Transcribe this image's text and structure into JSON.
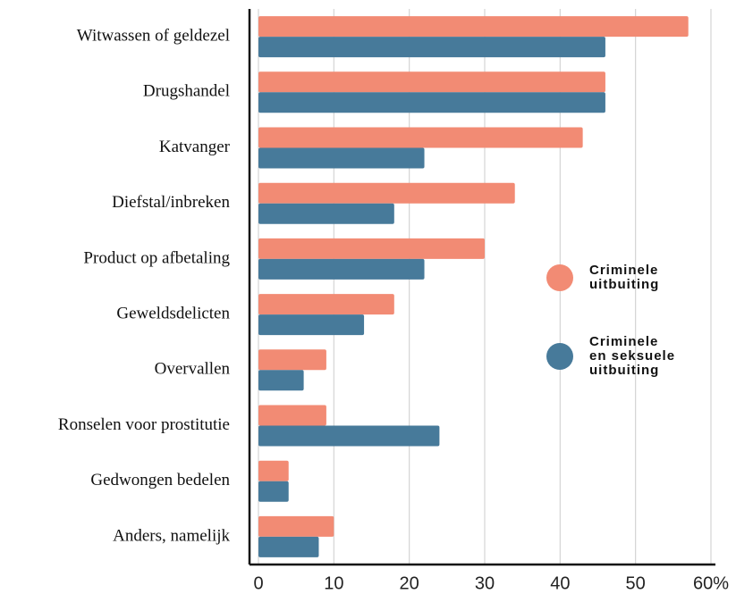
{
  "chart_data": {
    "type": "bar",
    "orientation": "horizontal",
    "categories": [
      "Witwassen of geldezel",
      "Drugshandel",
      "Katvanger",
      "Diefstal/inbreken",
      "Product op afbetaling",
      "Geweldsdelicten",
      "Overvallen",
      "Ronselen voor prostitutie",
      "Gedwongen bedelen",
      "Anders, namelijk"
    ],
    "series": [
      {
        "name": "Criminele uitbuiting",
        "color": "#f28b74",
        "values": [
          57,
          46,
          43,
          34,
          30,
          18,
          9,
          9,
          4,
          10
        ]
      },
      {
        "name": "Criminele en seksuele uitbuiting",
        "color": "#477a9a",
        "values": [
          46,
          46,
          22,
          18,
          22,
          14,
          6,
          24,
          4,
          8
        ]
      }
    ],
    "xlim": [
      0,
      60
    ],
    "xticks": [
      0,
      10,
      20,
      30,
      40,
      50,
      {
        "value": 60,
        "label": "60%"
      }
    ],
    "grid": true,
    "legend": "right"
  }
}
